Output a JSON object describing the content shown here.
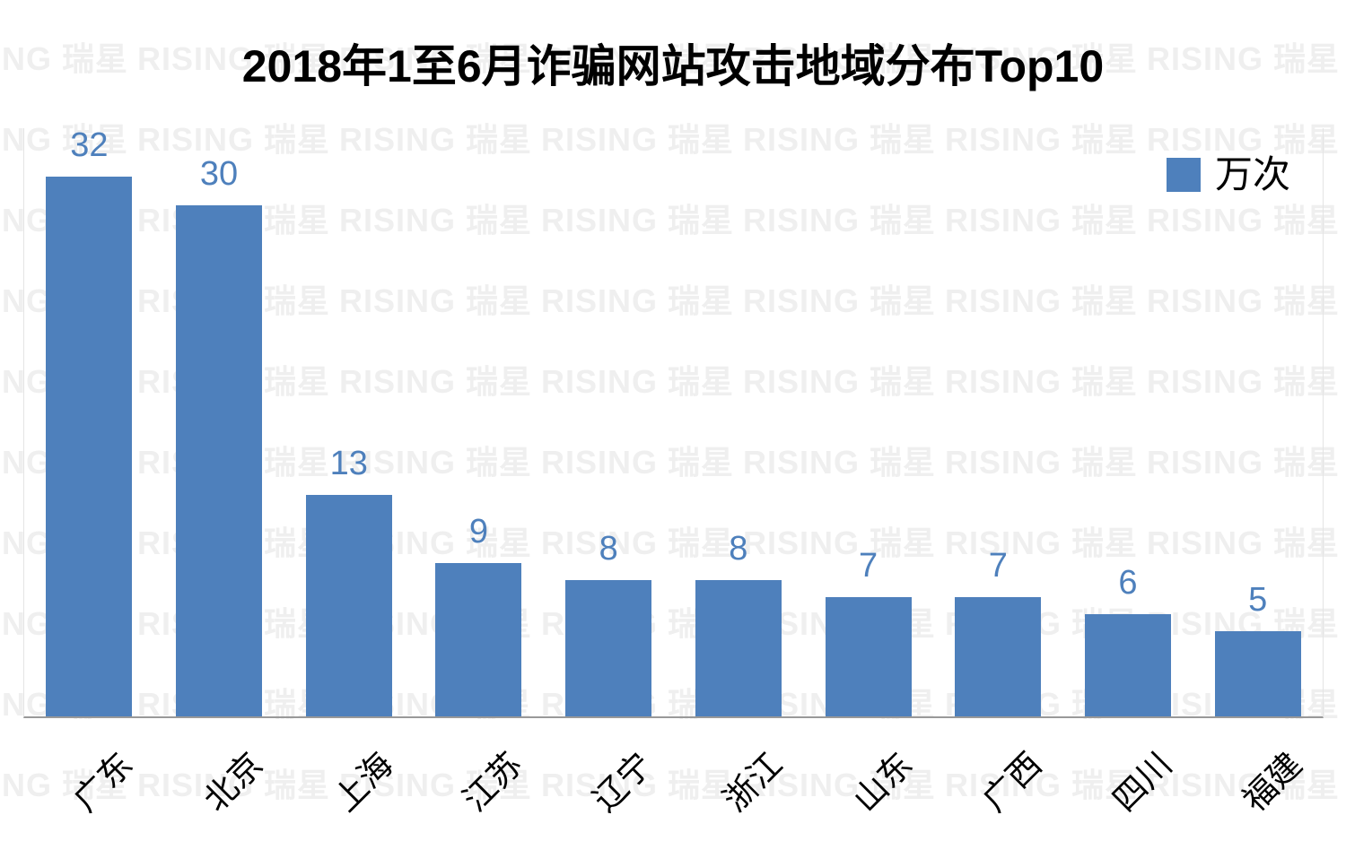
{
  "title": "2018年1至6月诈骗网站攻击地域分布Top10",
  "legend": {
    "label": "万次",
    "swatch_color": "#4e80bc"
  },
  "watermark": {
    "text": "RISING 瑞星",
    "color": "#efefef"
  },
  "axis": {
    "baseline_color": "#999999",
    "side_border_color": "#e4e4e4"
  },
  "chart_data": {
    "type": "bar",
    "title": "2018年1至6月诈骗网站攻击地域分布Top10",
    "categories": [
      "广东",
      "北京",
      "上海",
      "江苏",
      "辽宁",
      "浙江",
      "山东",
      "广西",
      "四川",
      "福建"
    ],
    "values": [
      32,
      30,
      13,
      9,
      8,
      8,
      7,
      7,
      6,
      5
    ],
    "series_name": "万次",
    "unit": "万次",
    "xlabel": "",
    "ylabel": "",
    "ylim": [
      0,
      34.5
    ],
    "grid": false,
    "data_labels": true,
    "legend_position": "top-right",
    "bar_color": "#4e80bc",
    "label_color": "#4e80bc",
    "x_tick_rotation": 45
  }
}
